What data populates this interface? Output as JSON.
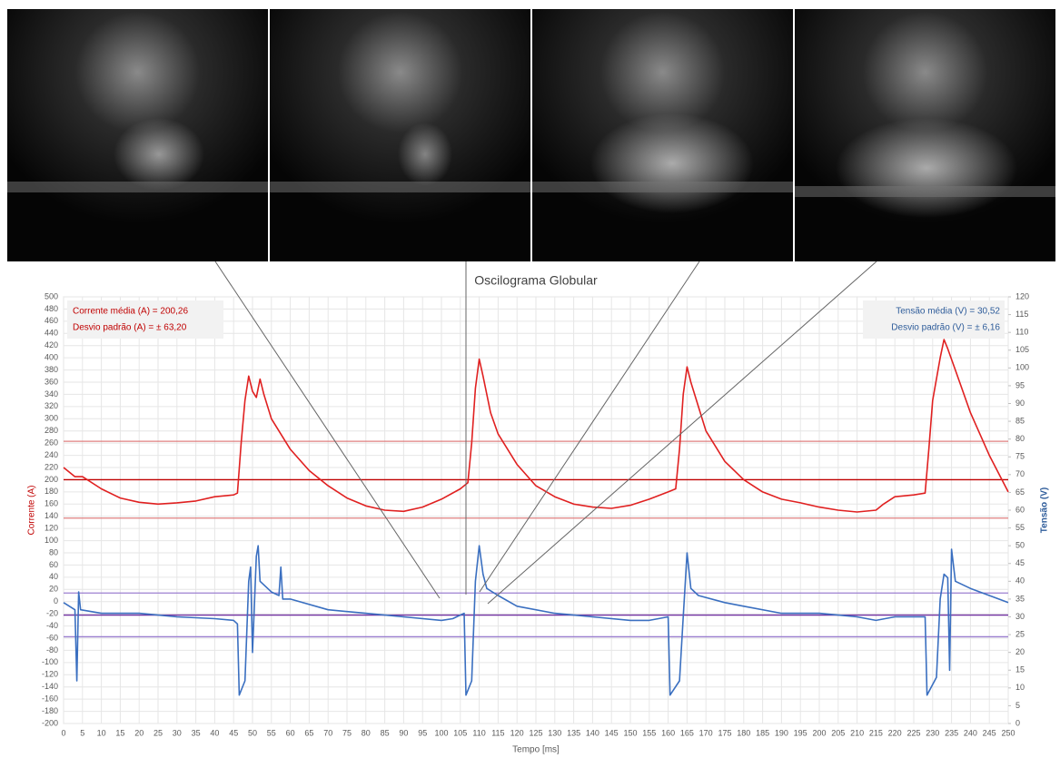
{
  "chart_data": {
    "type": "line",
    "title": "Oscilograma Globular",
    "xlabel": "Tempo [ms]",
    "ylabel": "Corrente (A)",
    "y2label": "Tensão (V)",
    "ylabel_color": "#c00000",
    "y2label_color": "#2e5c9a",
    "annotations_left": [
      "Corrente média (A) = 200,26",
      "Desvio padrão (A) = ± 63,20"
    ],
    "annotations_right": [
      "Tensão média (V) = 30,52",
      "Desvio padrão (V) = ± 6,16"
    ],
    "xlim": [
      0,
      250
    ],
    "xticks": [
      0,
      5,
      10,
      15,
      20,
      25,
      30,
      35,
      40,
      45,
      50,
      55,
      60,
      65,
      70,
      75,
      80,
      85,
      90,
      95,
      100,
      105,
      110,
      115,
      120,
      125,
      130,
      135,
      140,
      145,
      150,
      155,
      160,
      165,
      170,
      175,
      180,
      185,
      190,
      195,
      200,
      205,
      210,
      215,
      220,
      225,
      230,
      235,
      240,
      245,
      250
    ],
    "ylim": [
      -200,
      500
    ],
    "yticks": [
      -200,
      -180,
      -160,
      -140,
      -120,
      -100,
      -80,
      -60,
      -40,
      -20,
      0,
      20,
      40,
      60,
      80,
      100,
      120,
      140,
      160,
      180,
      200,
      220,
      240,
      260,
      280,
      300,
      320,
      340,
      360,
      380,
      400,
      420,
      440,
      460,
      480,
      500
    ],
    "y2lim": [
      0,
      120
    ],
    "y2ticks": [
      0,
      5,
      10,
      15,
      20,
      25,
      30,
      35,
      40,
      45,
      50,
      55,
      60,
      65,
      70,
      75,
      80,
      85,
      90,
      95,
      100,
      105,
      110,
      115,
      120
    ],
    "grid": true,
    "hlines": [
      {
        "axis": "y",
        "value": 263,
        "color": "#e08080"
      },
      {
        "axis": "y",
        "value": 200,
        "color": "#c00000"
      },
      {
        "axis": "y",
        "value": 137,
        "color": "#e08080"
      },
      {
        "axis": "y2",
        "value": 36.7,
        "color": "#9b7fd0"
      },
      {
        "axis": "y2",
        "value": 30.5,
        "color": "#7030a0"
      },
      {
        "axis": "y2",
        "value": 24.4,
        "color": "#9b7fd0"
      }
    ],
    "series": [
      {
        "color": "#e02020",
        "axis": "y",
        "x": [
          0,
          3,
          5,
          10,
          15,
          20,
          25,
          30,
          35,
          40,
          45,
          46,
          47,
          48,
          49,
          50,
          51,
          52,
          53,
          55,
          60,
          65,
          70,
          75,
          80,
          85,
          90,
          95,
          100,
          105,
          107,
          108,
          109,
          110,
          111,
          113,
          115,
          120,
          125,
          130,
          135,
          140,
          145,
          150,
          155,
          160,
          162,
          163,
          164,
          165,
          166,
          168,
          170,
          175,
          180,
          185,
          190,
          195,
          200,
          205,
          210,
          215,
          217,
          220,
          225,
          228,
          229,
          230,
          232,
          233,
          234,
          236,
          240,
          245,
          250
        ],
        "values": [
          220,
          205,
          205,
          185,
          170,
          163,
          160,
          162,
          165,
          172,
          175,
          178,
          260,
          330,
          370,
          345,
          335,
          365,
          340,
          300,
          250,
          215,
          190,
          170,
          157,
          150,
          148,
          155,
          168,
          185,
          195,
          260,
          350,
          398,
          370,
          310,
          275,
          225,
          190,
          172,
          160,
          155,
          153,
          158,
          168,
          180,
          185,
          250,
          340,
          385,
          360,
          320,
          280,
          230,
          200,
          180,
          168,
          162,
          155,
          150,
          147,
          150,
          160,
          172,
          175,
          178,
          250,
          330,
          400,
          430,
          415,
          380,
          310,
          240,
          180
        ]
      },
      {
        "color": "#3a6fc0",
        "axis": "y2",
        "x": [
          0,
          3,
          3.5,
          4,
          4.5,
          10,
          20,
          30,
          40,
          45,
          46,
          46.5,
          48,
          49,
          49.5,
          50,
          51,
          51.5,
          52,
          55,
          57,
          57.5,
          58,
          60,
          70,
          80,
          90,
          100,
          103,
          106,
          106.5,
          108,
          109,
          110,
          111,
          112,
          115,
          120,
          130,
          140,
          150,
          155,
          160,
          160.5,
          163,
          164,
          165,
          166,
          168,
          175,
          180,
          190,
          200,
          210,
          215,
          220,
          228,
          228.5,
          231,
          232,
          233,
          234,
          234.5,
          235,
          236,
          240,
          245,
          250
        ],
        "values": [
          34,
          32,
          12,
          37,
          32,
          31,
          31,
          30,
          29.5,
          29,
          28,
          8,
          12,
          40,
          44,
          20,
          47,
          50,
          40,
          37,
          36,
          44,
          35,
          35,
          32,
          31,
          30,
          29,
          29.5,
          31,
          8,
          12,
          40,
          50,
          42,
          38,
          36,
          33,
          31,
          30,
          29,
          29,
          30,
          8,
          12,
          30,
          48,
          38,
          36,
          34,
          33,
          31,
          31,
          30,
          29,
          30,
          30,
          8,
          13,
          35,
          42,
          41,
          15,
          49,
          40,
          38,
          36,
          34
        ]
      }
    ]
  }
}
